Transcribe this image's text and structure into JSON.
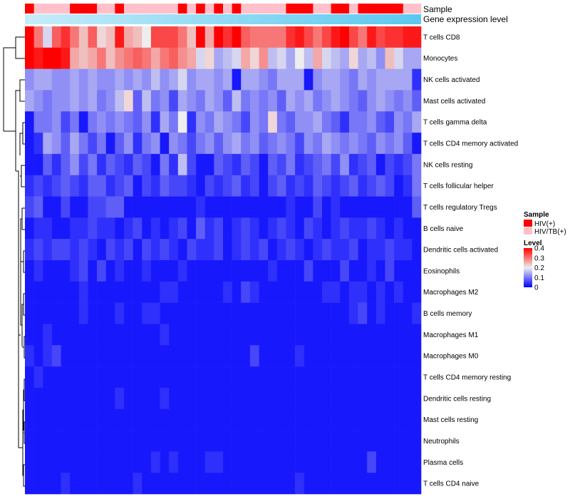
{
  "chart_data": {
    "type": "heatmap",
    "annotation_labels": [
      "Sample",
      "Gene expression level"
    ],
    "rows": [
      "T cells CD8",
      "Monocytes",
      "NK cells activated",
      "Mast cells activated",
      "T cells gamma delta",
      "T cells CD4 memory activated",
      "NK cells resting",
      "T cells follicular helper",
      "T cells regulatory  Tregs",
      "B cells naive",
      "Dendritic cells activated",
      "Eosinophils",
      "Macrophages M2",
      "B cells memory",
      "Macrophages M1",
      "Macrophages M0",
      "T cells CD4 memory resting",
      "Dendritic cells resting",
      "Mast cells resting",
      "Neutrophils",
      "Plasma cells",
      "T cells CD4 naive"
    ],
    "n_samples": 44,
    "sample_groups": [
      "HIV(+)",
      "HIV/TB(+)",
      "HIV/TB(+)",
      "HIV/TB(+)",
      "HIV/TB(+)",
      "HIV(+)",
      "HIV(+)",
      "HIV(+)",
      "HIV/TB(+)",
      "HIV/TB(+)",
      "HIV(+)",
      "HIV/TB(+)",
      "HIV/TB(+)",
      "HIV/TB(+)",
      "HIV/TB(+)",
      "HIV/TB(+)",
      "HIV/TB(+)",
      "HIV(+)",
      "HIV/TB(+)",
      "HIV(+)",
      "HIV/TB(+)",
      "HIV(+)",
      "HIV/TB(+)",
      "HIV(+)",
      "HIV/TB(+)",
      "HIV/TB(+)",
      "HIV/TB(+)",
      "HIV/TB(+)",
      "HIV/TB(+)",
      "HIV(+)",
      "HIV(+)",
      "HIV(+)",
      "HIV/TB(+)",
      "HIV/TB(+)",
      "HIV(+)",
      "HIV(+)",
      "HIV/TB(+)",
      "HIV(+)",
      "HIV(+)",
      "HIV(+)",
      "HIV(+)",
      "HIV(+)",
      "HIV/TB(+)",
      "HIV/TB(+)"
    ],
    "values": [
      [
        0.4,
        0.3,
        0.18,
        0.32,
        0.36,
        0.3,
        0.24,
        0.32,
        0.22,
        0.24,
        0.38,
        0.26,
        0.24,
        0.2,
        0.34,
        0.34,
        0.34,
        0.3,
        0.24,
        0.42,
        0.26,
        0.42,
        0.36,
        0.4,
        0.32,
        0.3,
        0.3,
        0.3,
        0.3,
        0.36,
        0.38,
        0.34,
        0.3,
        0.34,
        0.38,
        0.4,
        0.34,
        0.3,
        0.38,
        0.34,
        0.36,
        0.36,
        0.38,
        0.38
      ],
      [
        0.44,
        0.38,
        0.42,
        0.4,
        0.38,
        0.26,
        0.24,
        0.26,
        0.3,
        0.24,
        0.28,
        0.3,
        0.32,
        0.3,
        0.26,
        0.3,
        0.32,
        0.28,
        0.26,
        0.18,
        0.22,
        0.14,
        0.16,
        0.18,
        0.26,
        0.22,
        0.28,
        0.16,
        0.18,
        0.14,
        0.2,
        0.16,
        0.26,
        0.18,
        0.16,
        0.14,
        0.22,
        0.14,
        0.16,
        0.12,
        0.24,
        0.18,
        0.14,
        0.14
      ],
      [
        0.12,
        0.14,
        0.14,
        0.12,
        0.12,
        0.14,
        0.12,
        0.14,
        0.12,
        0.12,
        0.14,
        0.12,
        0.14,
        0.12,
        0.16,
        0.12,
        0.14,
        0.18,
        0.12,
        0.14,
        0.14,
        0.12,
        0.14,
        0.02,
        0.14,
        0.14,
        0.12,
        0.1,
        0.14,
        0.14,
        0.14,
        0.02,
        0.12,
        0.14,
        0.14,
        0.12,
        0.1,
        0.14,
        0.12,
        0.14,
        0.14,
        0.14,
        0.14,
        0.04
      ],
      [
        0.14,
        0.12,
        0.1,
        0.12,
        0.12,
        0.14,
        0.12,
        0.14,
        0.1,
        0.12,
        0.16,
        0.22,
        0.08,
        0.16,
        0.1,
        0.12,
        0.06,
        0.14,
        0.12,
        0.1,
        0.14,
        0.12,
        0.08,
        0.16,
        0.1,
        0.12,
        0.1,
        0.12,
        0.08,
        0.14,
        0.12,
        0.14,
        0.1,
        0.12,
        0.14,
        0.12,
        0.1,
        0.08,
        0.12,
        0.14,
        0.12,
        0.1,
        0.12,
        0.08
      ],
      [
        0.02,
        0.1,
        0.1,
        0.12,
        0.06,
        0.1,
        0.02,
        0.1,
        0.12,
        0.1,
        0.12,
        0.1,
        0.08,
        0.12,
        0.04,
        0.14,
        0.1,
        0.2,
        0.04,
        0.12,
        0.1,
        0.14,
        0.12,
        0.1,
        0.06,
        0.12,
        0.1,
        0.22,
        0.1,
        0.08,
        0.12,
        0.12,
        0.14,
        0.1,
        0.08,
        0.04,
        0.1,
        0.1,
        0.12,
        0.08,
        0.06,
        0.12,
        0.1,
        0.14
      ],
      [
        0.02,
        0.04,
        0.14,
        0.12,
        0.08,
        0.14,
        0.1,
        0.06,
        0.1,
        0.02,
        0.08,
        0.12,
        0.04,
        0.1,
        0.12,
        0.02,
        0.12,
        0.1,
        0.06,
        0.1,
        0.12,
        0.08,
        0.12,
        0.14,
        0.1,
        0.12,
        0.08,
        0.1,
        0.12,
        0.1,
        0.06,
        0.12,
        0.1,
        0.14,
        0.12,
        0.1,
        0.12,
        0.1,
        0.08,
        0.12,
        0.1,
        0.12,
        0.08,
        0.02
      ],
      [
        0.02,
        0.02,
        0.08,
        0.04,
        0.08,
        0.12,
        0.06,
        0.1,
        0.04,
        0.08,
        0.06,
        0.04,
        0.08,
        0.06,
        0.02,
        0.1,
        0.04,
        0.16,
        0.06,
        0.02,
        0.02,
        0.08,
        0.06,
        0.04,
        0.08,
        0.06,
        0.02,
        0.08,
        0.06,
        0.1,
        0.04,
        0.06,
        0.08,
        0.1,
        0.06,
        0.12,
        0.04,
        0.06,
        0.08,
        0.02,
        0.06,
        0.04,
        0.06,
        0.1
      ],
      [
        0.04,
        0.06,
        0.04,
        0.06,
        0.08,
        0.06,
        0.04,
        0.08,
        0.08,
        0.04,
        0.06,
        0.08,
        0.02,
        0.06,
        0.04,
        0.08,
        0.06,
        0.06,
        0.04,
        0.02,
        0.06,
        0.04,
        0.06,
        0.08,
        0.04,
        0.06,
        0.02,
        0.06,
        0.08,
        0.04,
        0.06,
        0.04,
        0.08,
        0.06,
        0.04,
        0.06,
        0.08,
        0.04,
        0.06,
        0.08,
        0.06,
        0.02,
        0.04,
        0.1
      ],
      [
        0.06,
        0.08,
        0.02,
        0.02,
        0.06,
        0.02,
        0.02,
        0.06,
        0.06,
        0.08,
        0.08,
        0.02,
        0.02,
        0.02,
        0.02,
        0.02,
        0.02,
        0.02,
        0.02,
        0.04,
        0.02,
        0.02,
        0.02,
        0.02,
        0.02,
        0.02,
        0.02,
        0.02,
        0.02,
        0.04,
        0.02,
        0.02,
        0.06,
        0.02,
        0.04,
        0.02,
        0.02,
        0.02,
        0.02,
        0.02,
        0.02,
        0.02,
        0.02,
        0.08
      ],
      [
        0.02,
        0.04,
        0.04,
        0.02,
        0.02,
        0.04,
        0.04,
        0.06,
        0.04,
        0.04,
        0.02,
        0.04,
        0.06,
        0.02,
        0.04,
        0.02,
        0.04,
        0.06,
        0.02,
        0.08,
        0.04,
        0.06,
        0.02,
        0.04,
        0.06,
        0.04,
        0.02,
        0.04,
        0.06,
        0.04,
        0.02,
        0.06,
        0.04,
        0.02,
        0.04,
        0.06,
        0.04,
        0.04,
        0.06,
        0.04,
        0.02,
        0.04,
        0.02,
        0.02
      ],
      [
        0.04,
        0.06,
        0.04,
        0.06,
        0.06,
        0.04,
        0.06,
        0.04,
        0.02,
        0.06,
        0.04,
        0.06,
        0.02,
        0.06,
        0.04,
        0.06,
        0.04,
        0.02,
        0.06,
        0.04,
        0.04,
        0.06,
        0.02,
        0.04,
        0.06,
        0.04,
        0.06,
        0.02,
        0.04,
        0.06,
        0.04,
        0.02,
        0.04,
        0.06,
        0.04,
        0.04,
        0.06,
        0.02,
        0.04,
        0.04,
        0.06,
        0.04,
        0.04,
        0.02
      ],
      [
        0.02,
        0.04,
        0.02,
        0.02,
        0.02,
        0.04,
        0.06,
        0.02,
        0.06,
        0.02,
        0.04,
        0.02,
        0.02,
        0.04,
        0.02,
        0.02,
        0.02,
        0.04,
        0.02,
        0.02,
        0.02,
        0.02,
        0.02,
        0.02,
        0.02,
        0.02,
        0.02,
        0.04,
        0.02,
        0.02,
        0.02,
        0.06,
        0.02,
        0.02,
        0.02,
        0.06,
        0.02,
        0.02,
        0.04,
        0.02,
        0.06,
        0.02,
        0.02,
        0.02
      ],
      [
        0.02,
        0.02,
        0.02,
        0.02,
        0.02,
        0.02,
        0.04,
        0.02,
        0.02,
        0.02,
        0.02,
        0.02,
        0.02,
        0.02,
        0.02,
        0.04,
        0.04,
        0.02,
        0.02,
        0.02,
        0.02,
        0.02,
        0.04,
        0.02,
        0.06,
        0.04,
        0.02,
        0.02,
        0.02,
        0.02,
        0.02,
        0.02,
        0.02,
        0.04,
        0.04,
        0.02,
        0.04,
        0.04,
        0.02,
        0.04,
        0.02,
        0.04,
        0.02,
        0.02
      ],
      [
        0.02,
        0.02,
        0.02,
        0.02,
        0.02,
        0.02,
        0.04,
        0.02,
        0.02,
        0.02,
        0.04,
        0.02,
        0.02,
        0.04,
        0.04,
        0.02,
        0.02,
        0.02,
        0.02,
        0.02,
        0.02,
        0.02,
        0.02,
        0.02,
        0.02,
        0.02,
        0.02,
        0.02,
        0.02,
        0.02,
        0.02,
        0.02,
        0.02,
        0.02,
        0.02,
        0.02,
        0.04,
        0.06,
        0.02,
        0.04,
        0.02,
        0.02,
        0.02,
        0.04
      ],
      [
        0.02,
        0.02,
        0.04,
        0.02,
        0.02,
        0.02,
        0.02,
        0.02,
        0.02,
        0.02,
        0.02,
        0.02,
        0.02,
        0.02,
        0.02,
        0.04,
        0.02,
        0.02,
        0.02,
        0.02,
        0.02,
        0.02,
        0.02,
        0.02,
        0.02,
        0.02,
        0.02,
        0.02,
        0.02,
        0.02,
        0.02,
        0.02,
        0.02,
        0.02,
        0.02,
        0.02,
        0.02,
        0.02,
        0.02,
        0.02,
        0.02,
        0.02,
        0.02,
        0.02
      ],
      [
        0.04,
        0.02,
        0.04,
        0.06,
        0.02,
        0.02,
        0.02,
        0.02,
        0.02,
        0.02,
        0.02,
        0.02,
        0.02,
        0.02,
        0.02,
        0.02,
        0.02,
        0.02,
        0.02,
        0.02,
        0.02,
        0.02,
        0.02,
        0.02,
        0.02,
        0.06,
        0.02,
        0.02,
        0.02,
        0.02,
        0.04,
        0.02,
        0.02,
        0.02,
        0.02,
        0.02,
        0.02,
        0.02,
        0.02,
        0.02,
        0.02,
        0.02,
        0.02,
        0.02
      ],
      [
        0.02,
        0.04,
        0.02,
        0.02,
        0.02,
        0.02,
        0.02,
        0.02,
        0.02,
        0.02,
        0.02,
        0.02,
        0.02,
        0.02,
        0.02,
        0.02,
        0.02,
        0.02,
        0.02,
        0.02,
        0.02,
        0.02,
        0.02,
        0.02,
        0.02,
        0.02,
        0.02,
        0.02,
        0.02,
        0.02,
        0.02,
        0.02,
        0.02,
        0.02,
        0.02,
        0.02,
        0.02,
        0.02,
        0.02,
        0.02,
        0.02,
        0.02,
        0.02,
        0.02
      ],
      [
        0.02,
        0.02,
        0.02,
        0.02,
        0.02,
        0.02,
        0.02,
        0.02,
        0.02,
        0.02,
        0.04,
        0.02,
        0.02,
        0.02,
        0.02,
        0.04,
        0.02,
        0.02,
        0.02,
        0.02,
        0.02,
        0.02,
        0.02,
        0.02,
        0.02,
        0.02,
        0.02,
        0.02,
        0.02,
        0.02,
        0.02,
        0.02,
        0.02,
        0.02,
        0.02,
        0.02,
        0.02,
        0.02,
        0.02,
        0.02,
        0.02,
        0.02,
        0.02,
        0.02
      ],
      [
        0.02,
        0.02,
        0.02,
        0.02,
        0.02,
        0.02,
        0.02,
        0.02,
        0.02,
        0.02,
        0.02,
        0.02,
        0.02,
        0.02,
        0.02,
        0.02,
        0.02,
        0.02,
        0.02,
        0.02,
        0.02,
        0.02,
        0.02,
        0.02,
        0.02,
        0.02,
        0.02,
        0.02,
        0.02,
        0.02,
        0.02,
        0.02,
        0.02,
        0.02,
        0.02,
        0.02,
        0.02,
        0.02,
        0.02,
        0.02,
        0.02,
        0.02,
        0.02,
        0.02
      ],
      [
        0.02,
        0.02,
        0.02,
        0.02,
        0.02,
        0.02,
        0.02,
        0.02,
        0.02,
        0.02,
        0.02,
        0.02,
        0.02,
        0.02,
        0.02,
        0.02,
        0.02,
        0.02,
        0.02,
        0.02,
        0.02,
        0.02,
        0.02,
        0.02,
        0.02,
        0.02,
        0.02,
        0.02,
        0.02,
        0.02,
        0.02,
        0.02,
        0.02,
        0.02,
        0.02,
        0.02,
        0.02,
        0.02,
        0.02,
        0.02,
        0.02,
        0.02,
        0.02,
        0.02
      ],
      [
        0.02,
        0.02,
        0.02,
        0.02,
        0.02,
        0.02,
        0.02,
        0.02,
        0.02,
        0.02,
        0.02,
        0.02,
        0.02,
        0.02,
        0.04,
        0.02,
        0.04,
        0.02,
        0.02,
        0.02,
        0.04,
        0.04,
        0.02,
        0.02,
        0.02,
        0.02,
        0.02,
        0.02,
        0.02,
        0.02,
        0.02,
        0.02,
        0.02,
        0.02,
        0.02,
        0.02,
        0.02,
        0.02,
        0.06,
        0.02,
        0.02,
        0.02,
        0.02,
        0.02
      ],
      [
        0.02,
        0.02,
        0.02,
        0.02,
        0.04,
        0.02,
        0.02,
        0.02,
        0.02,
        0.02,
        0.02,
        0.02,
        0.04,
        0.02,
        0.02,
        0.02,
        0.02,
        0.02,
        0.02,
        0.02,
        0.02,
        0.02,
        0.02,
        0.02,
        0.02,
        0.02,
        0.02,
        0.02,
        0.02,
        0.02,
        0.04,
        0.02,
        0.02,
        0.02,
        0.02,
        0.02,
        0.02,
        0.02,
        0.02,
        0.02,
        0.02,
        0.02,
        0.02,
        0.02
      ]
    ],
    "color_scale": {
      "min": 0,
      "mid": 0.2,
      "max": 0.4,
      "low_color": "#0000ff",
      "mid_color": "#eeeeee",
      "high_color": "#ff0000"
    },
    "legend": {
      "sample_title": "Sample",
      "sample_entries": [
        {
          "label": "HIV(+)",
          "color": "#ff0000"
        },
        {
          "label": "HIV/TB(+)",
          "color": "#ffc0cb"
        }
      ],
      "level_title": "Level",
      "level_ticks": [
        "0",
        "0.1",
        "0.2",
        "0.3",
        "0.4"
      ],
      "level_tick_values": [
        0,
        0.1,
        0.2,
        0.3,
        0.4
      ]
    },
    "expression_bar_colors": [
      "#c7ecf9",
      "#5bc8ef"
    ],
    "placement": {
      "legend": "right",
      "row_labels": "right",
      "dendrogram": "left"
    }
  }
}
